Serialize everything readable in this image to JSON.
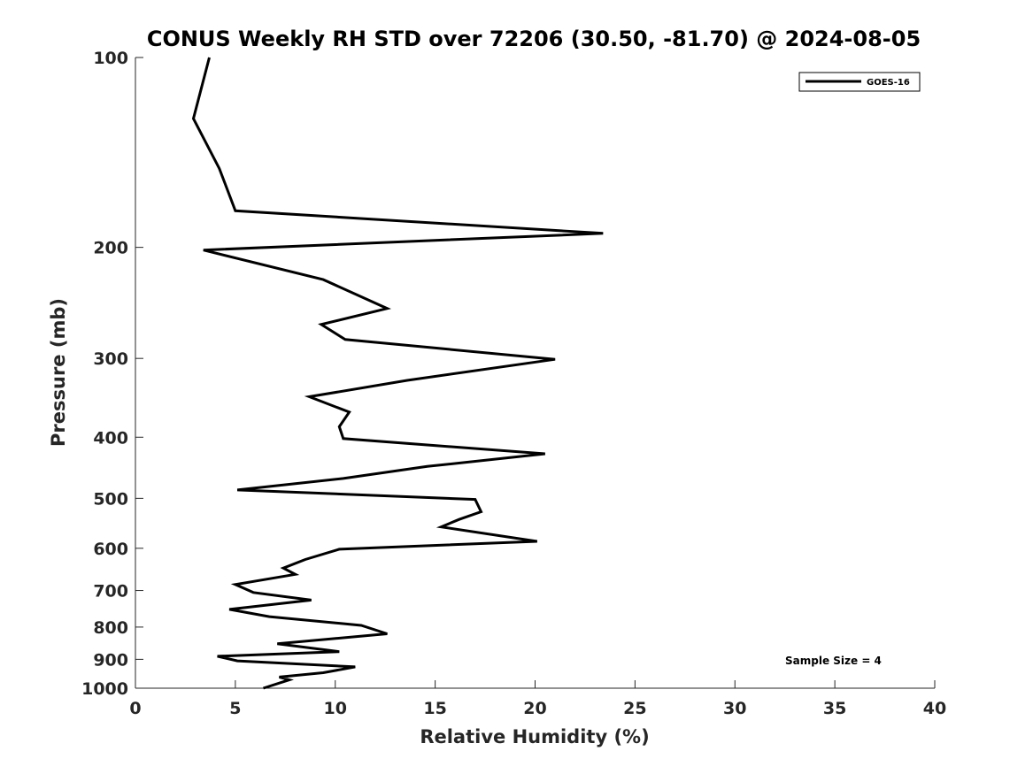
{
  "chart_data": {
    "type": "line",
    "title": "CONUS Weekly RH STD over 72206 (30.50, -81.70) @ 2024-08-05",
    "xlabel": "Relative Humidity (%)",
    "ylabel": "Pressure (mb)",
    "xlim": [
      0,
      40
    ],
    "ylim": [
      100,
      1000
    ],
    "y_scale": "log",
    "y_reversed": true,
    "x_ticks": [
      "0",
      "5",
      "10",
      "15",
      "20",
      "25",
      "30",
      "35",
      "40"
    ],
    "y_ticks": [
      "100",
      "200",
      "300",
      "400",
      "500",
      "600",
      "700",
      "800",
      "900",
      "1000"
    ],
    "grid": false,
    "legend_position": "top-right",
    "annotation": "Sample Size = 4",
    "series": [
      {
        "name": "GOES-16",
        "color": "#000000",
        "points": [
          [
            3.7,
            100
          ],
          [
            2.9,
            125
          ],
          [
            4.2,
            150
          ],
          [
            5.0,
            175
          ],
          [
            23.4,
            190
          ],
          [
            3.4,
            202
          ],
          [
            9.4,
            225
          ],
          [
            12.6,
            250
          ],
          [
            9.3,
            265
          ],
          [
            10.5,
            280
          ],
          [
            21.0,
            301
          ],
          [
            13.6,
            325
          ],
          [
            8.7,
            345
          ],
          [
            10.7,
            365
          ],
          [
            10.2,
            385
          ],
          [
            10.4,
            402
          ],
          [
            20.5,
            425
          ],
          [
            14.6,
            445
          ],
          [
            10.4,
            465
          ],
          [
            5.1,
            485
          ],
          [
            17.0,
            502
          ],
          [
            17.3,
            525
          ],
          [
            16.2,
            540
          ],
          [
            15.3,
            555
          ],
          [
            20.1,
            585
          ],
          [
            10.2,
            602
          ],
          [
            8.5,
            625
          ],
          [
            7.4,
            645
          ],
          [
            8.0,
            660
          ],
          [
            5.0,
            685
          ],
          [
            5.9,
            705
          ],
          [
            8.8,
            725
          ],
          [
            4.7,
            750
          ],
          [
            6.7,
            770
          ],
          [
            11.3,
            795
          ],
          [
            12.6,
            820
          ],
          [
            7.1,
            850
          ],
          [
            10.2,
            875
          ],
          [
            4.1,
            890
          ],
          [
            5.1,
            905
          ],
          [
            11.0,
            925
          ],
          [
            9.4,
            945
          ],
          [
            7.2,
            960
          ],
          [
            7.7,
            970
          ],
          [
            6.4,
            1000
          ]
        ]
      }
    ]
  }
}
